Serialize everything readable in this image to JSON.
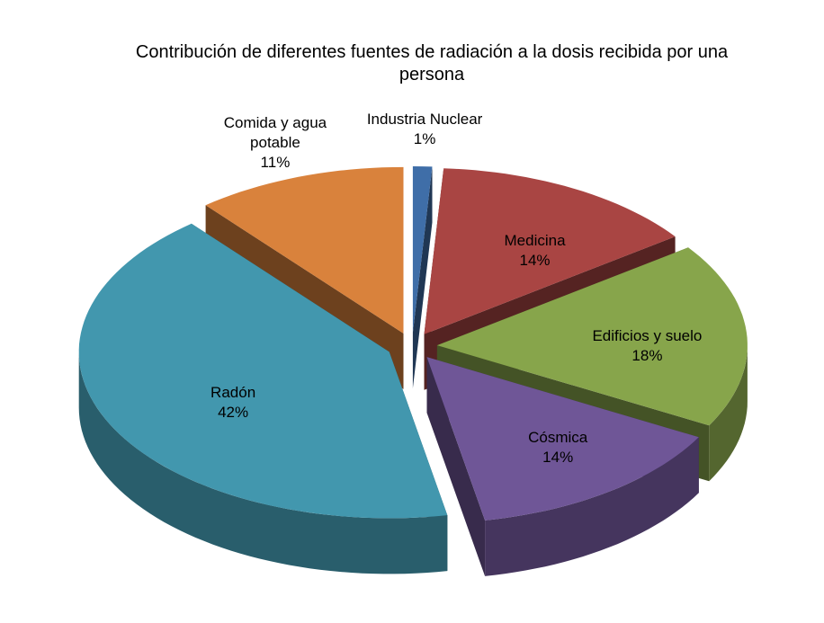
{
  "chart_data": {
    "type": "pie3d",
    "title": "Contribución de diferentes fuentes de radiación a la dosis recibida por una persona",
    "categories": [
      "Industria Nuclear",
      "Medicina",
      "Edificios y suelo",
      "Cósmica",
      "Radón",
      "Comida y agua potable"
    ],
    "values": [
      1,
      14,
      18,
      14,
      42,
      11
    ],
    "value_labels": [
      "1%",
      "14%",
      "18%",
      "14%",
      "42%",
      "11%"
    ],
    "colors": [
      "#3f6ea8",
      "#a94543",
      "#87a54b",
      "#6f5697",
      "#4297ae",
      "#d9823c"
    ]
  }
}
